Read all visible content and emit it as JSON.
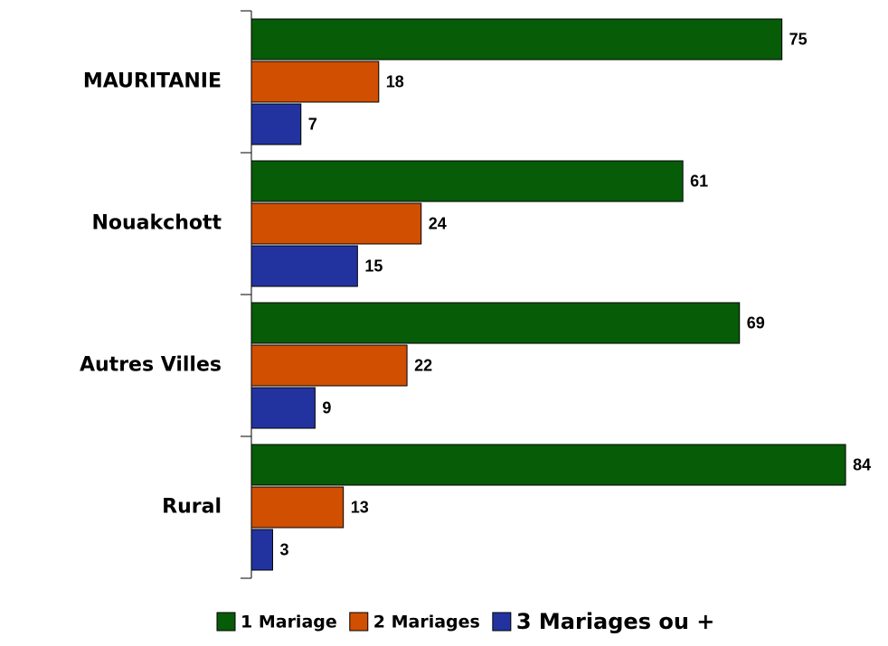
{
  "chart_data": {
    "type": "hbar",
    "categories": [
      "MAURITANIE",
      "Nouakchott",
      "Autres Villes",
      "Rural"
    ],
    "series": [
      {
        "name": "1 Mariage",
        "color": "#075c07",
        "values": [
          75,
          61,
          69,
          84
        ]
      },
      {
        "name": "2 Mariages",
        "color": "#d04f00",
        "values": [
          18,
          24,
          22,
          13
        ]
      },
      {
        "name": "3 Mariages ou +",
        "color": "#2233a0",
        "values": [
          7,
          15,
          9,
          3
        ]
      }
    ],
    "xlim": [
      0,
      90
    ],
    "legend": "bottom"
  }
}
